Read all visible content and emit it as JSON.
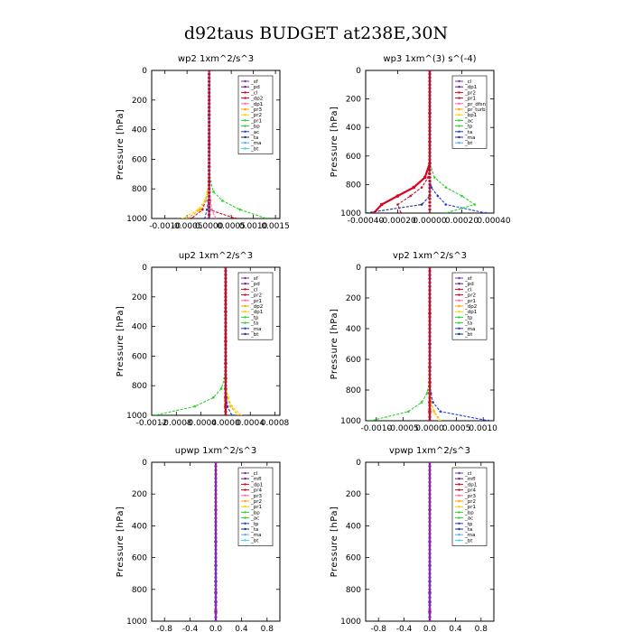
{
  "suptitle": "d92taus  BUDGET at238E,30N",
  "colors": {
    "purple": "#7b2fbf",
    "dpurple": "#5a1f99",
    "red": "#e0001f",
    "crimson": "#c0102a",
    "orange": "#ffa300",
    "yellow": "#ffd000",
    "green": "#2bd32b",
    "blue": "#1f3fe0",
    "navy": "#203080",
    "cyan": "#33d8ee",
    "ltblue": "#55aaff"
  },
  "chart_data": [
    {
      "type": "line",
      "title": "wp2   1xm^2/s^3",
      "ylabel": "Pressure  [hPa]",
      "xlim": [
        -0.0013,
        0.0016
      ],
      "ylim": [
        1000,
        0
      ],
      "xticks": [
        -0.001,
        -0.0005,
        0.0,
        0.0005,
        0.001,
        0.0015
      ],
      "xtick_labels": [
        "-0.0010",
        "-0.0005",
        "0.0000",
        "0.0005",
        "0.0010",
        "0.0015"
      ],
      "yticks": [
        0,
        200,
        400,
        600,
        800,
        1000
      ],
      "legend": [
        "_sf",
        "_pd",
        "_cl",
        "_dp2",
        "_dp1",
        "_pr3",
        "_pr2",
        "_pr1",
        "_bp",
        "_ac",
        "_ta",
        "_ma",
        "_bt"
      ],
      "series": [
        {
          "name": "_sf",
          "color": "#7b2fbf",
          "profile": [
            0,
            0,
            0,
            0,
            0,
            0,
            0,
            0,
            0
          ]
        },
        {
          "name": "_pd",
          "color": "#5a1f99",
          "profile": [
            0,
            0,
            0,
            0,
            0,
            0,
            0,
            0,
            0
          ]
        },
        {
          "name": "_dp2",
          "color": "#e0001f",
          "profile": [
            0,
            0,
            0,
            0,
            0,
            0,
            0,
            0,
            0.0006
          ]
        },
        {
          "name": "_dp1",
          "color": "#c0102a",
          "profile": [
            0,
            0,
            0,
            0,
            -1e-05,
            -3e-05,
            -8e-05,
            -0.00015,
            -0.0004
          ]
        },
        {
          "name": "_pr3",
          "color": "#ff66aa",
          "profile": [
            0,
            0,
            0,
            0,
            0,
            1e-05,
            3e-05,
            6e-05,
            0.00015
          ]
        },
        {
          "name": "_pr2",
          "color": "#ffa300",
          "profile": [
            0,
            0,
            0,
            0,
            -1e-05,
            -3e-05,
            -8e-05,
            -0.0002,
            -0.0005
          ]
        },
        {
          "name": "_pr1",
          "color": "#ffd000",
          "profile": [
            0,
            0,
            0,
            0,
            -1e-05,
            -4e-05,
            -0.0001,
            -0.00025,
            -0.0006
          ]
        },
        {
          "name": "_bp",
          "color": "#2bd32b",
          "profile": [
            0,
            0,
            0,
            0,
            3e-05,
            0.0001,
            0.0003,
            0.0007,
            0.0013
          ]
        },
        {
          "name": "_ta",
          "color": "#1f3fe0",
          "profile": [
            0,
            0,
            0,
            0,
            0,
            0,
            -2e-05,
            -5e-05,
            -0.0001
          ]
        },
        {
          "name": "_bt",
          "color": "#33d8ee",
          "profile": [
            0,
            0,
            0,
            0,
            0,
            0,
            0,
            0,
            2e-05
          ]
        }
      ]
    },
    {
      "type": "line",
      "title": "wp3   1xm^(3) s^(-4)",
      "ylabel": "Pressure  [hPa]",
      "xlim": [
        -0.0004,
        0.0004
      ],
      "ylim": [
        1000,
        0
      ],
      "xticks": [
        -0.0004,
        -0.0002,
        0.0,
        0.0002,
        0.0004
      ],
      "xtick_labels": [
        "-0.00040",
        "-0.00020",
        "0.00000",
        "0.00020",
        "0.00040"
      ],
      "yticks": [
        0,
        200,
        400,
        600,
        800,
        1000
      ],
      "legend": [
        "_cl",
        "_dp1",
        "_pr2",
        "_pr1",
        "_pr_dfsn",
        "_pr_turb",
        "_bp1",
        "_ac",
        "_tp",
        "_ta",
        "_ma",
        "_bt"
      ],
      "series": [
        {
          "name": "_dp1",
          "color": "#e0001f",
          "profile": [
            0,
            0,
            0,
            0,
            -3e-05,
            -0.0001,
            -0.0002,
            -0.0003,
            -0.00035
          ]
        },
        {
          "name": "_pr2",
          "color": "#c0102a",
          "profile": [
            0,
            0,
            0,
            0,
            -1e-05,
            -5e-05,
            -0.00012,
            -0.0002,
            -0.00018
          ]
        },
        {
          "name": "_bp1",
          "color": "#2bd32b",
          "profile": [
            0,
            0,
            0,
            0,
            3e-05,
            0.0001,
            0.0002,
            0.00028,
            0.0001
          ]
        },
        {
          "name": "_tp",
          "color": "#1f3fe0",
          "profile": [
            0,
            0,
            0,
            0,
            0,
            1e-05,
            5e-05,
            0.0001,
            0.00035
          ]
        },
        {
          "name": "_ta",
          "color": "#203080",
          "profile": [
            0,
            0,
            0,
            0,
            0,
            0,
            0,
            -5e-05,
            -0.0004
          ]
        }
      ]
    },
    {
      "type": "line",
      "title": "up2   1xm^2/s^3",
      "ylabel": "Pressure  [hPa]",
      "xlim": [
        -0.0012,
        0.00088
      ],
      "ylim": [
        1000,
        0
      ],
      "xticks": [
        -0.0012,
        -0.0008,
        -0.0004,
        0.0,
        0.0004,
        0.0008
      ],
      "xtick_labels": [
        "-0.0012",
        "-0.0008",
        "-0.0004",
        "0.0000",
        "0.0004",
        "0.0008"
      ],
      "yticks": [
        0,
        200,
        400,
        600,
        800,
        1000
      ],
      "legend": [
        "_sf",
        "_pd",
        "_cl",
        "_pr2",
        "_pr1",
        "_dp2",
        "_dp1",
        "_tp",
        "_ta",
        "_ma",
        "_bt"
      ],
      "series": [
        {
          "name": "_sf",
          "color": "#e0001f",
          "profile": [
            0,
            0,
            0,
            0,
            0,
            0,
            0,
            0,
            0
          ]
        },
        {
          "name": "_pr2",
          "color": "#ffa300",
          "profile": [
            0,
            0,
            0,
            0,
            0,
            1e-05,
            3e-05,
            8e-05,
            0.0002
          ]
        },
        {
          "name": "_pr1",
          "color": "#ffd000",
          "profile": [
            0,
            0,
            0,
            0,
            0,
            1e-05,
            4e-05,
            0.0001,
            0.00025
          ]
        },
        {
          "name": "_dp1",
          "color": "#2bd32b",
          "profile": [
            0,
            0,
            0,
            0,
            -2e-05,
            -7e-05,
            -0.0002,
            -0.0005,
            -0.00115
          ]
        },
        {
          "name": "_tp",
          "color": "#1f3fe0",
          "profile": [
            0,
            0,
            0,
            0,
            0,
            0,
            1e-05,
            3e-05,
            0.0001
          ]
        }
      ]
    },
    {
      "type": "line",
      "title": "vp2   1xm^2/s^3",
      "ylabel": "Pressure  [hPa]",
      "xlim": [
        -0.0012,
        0.0012
      ],
      "ylim": [
        1000,
        0
      ],
      "xticks": [
        -0.001,
        -0.0005,
        0.0,
        0.0005,
        0.001
      ],
      "xtick_labels": [
        "-0.0010",
        "-0.0005",
        "0.0000",
        "0.0005",
        "0.0010"
      ],
      "yticks": [
        0,
        200,
        400,
        600,
        800,
        1000
      ],
      "legend": [
        "_sf",
        "_pd",
        "_cl",
        "_pr2",
        "_pr1",
        "_dp2",
        "_dp1",
        "_tp",
        "_ta",
        "_ma",
        "_bt"
      ],
      "series": [
        {
          "name": "_sf",
          "color": "#e0001f",
          "profile": [
            0,
            0,
            0,
            0,
            0,
            0,
            0,
            0,
            0
          ]
        },
        {
          "name": "_pr2",
          "color": "#ffa300",
          "profile": [
            0,
            0,
            0,
            0,
            0,
            1e-05,
            3e-05,
            8e-05,
            0.0002
          ]
        },
        {
          "name": "_pr1",
          "color": "#ffd000",
          "profile": [
            0,
            0,
            0,
            0,
            0,
            1e-05,
            3e-05,
            7e-05,
            0.00018
          ]
        },
        {
          "name": "_dp1",
          "color": "#2bd32b",
          "profile": [
            0,
            0,
            0,
            0,
            -1e-05,
            -5e-05,
            -0.00015,
            -0.0004,
            -0.0011
          ]
        },
        {
          "name": "_tp",
          "color": "#1f3fe0",
          "profile": [
            0,
            0,
            0,
            0,
            0,
            2e-05,
            6e-05,
            0.0002,
            0.0011
          ]
        }
      ]
    },
    {
      "type": "line",
      "title": "upwp   1xm^2/s^3",
      "ylabel": "Pressure  [hPa]",
      "xlim": [
        -1.0,
        1.0
      ],
      "ylim": [
        1000,
        0
      ],
      "xticks": [
        -0.8,
        -0.4,
        0.0,
        0.4,
        0.8
      ],
      "xtick_labels": [
        "-0.8",
        "-0.4",
        "0.0",
        "0.4",
        "0.8"
      ],
      "yticks": [
        0,
        200,
        400,
        600,
        800,
        1000
      ],
      "legend": [
        "_cl",
        "_mfl",
        "_dp1",
        "_pr4",
        "_pr3",
        "_pr2",
        "_pr1",
        "_bp",
        "_ac",
        "_tp",
        "_ta",
        "_ma",
        "_bt"
      ],
      "series": [
        {
          "name": "_cl",
          "color": "#7b2fbf",
          "profile": [
            0,
            0,
            0,
            0,
            0,
            0,
            0,
            0,
            0
          ]
        },
        {
          "name": "_dp1",
          "color": "#e0001f",
          "profile": [
            0,
            0,
            0,
            0,
            0,
            0,
            0,
            0,
            0
          ]
        }
      ]
    },
    {
      "type": "line",
      "title": "vpwp   1xm^2/s^3",
      "ylabel": "Pressure  [hPa]",
      "xlim": [
        -1.0,
        1.0
      ],
      "ylim": [
        1000,
        0
      ],
      "xticks": [
        -0.8,
        -0.4,
        0.0,
        0.4,
        0.8
      ],
      "xtick_labels": [
        "-0.8",
        "-0.4",
        "0.0",
        "0.4",
        "0.8"
      ],
      "yticks": [
        0,
        200,
        400,
        600,
        800,
        1000
      ],
      "legend": [
        "_cl",
        "_mfl",
        "_dp1",
        "_pr4",
        "_pr3",
        "_pr2",
        "_pr1",
        "_bp",
        "_ac",
        "_tp",
        "_ta",
        "_ma",
        "_bt"
      ],
      "series": [
        {
          "name": "_cl",
          "color": "#7b2fbf",
          "profile": [
            0,
            0,
            0,
            0,
            0,
            0,
            0,
            0,
            0
          ]
        },
        {
          "name": "_dp1",
          "color": "#e0001f",
          "profile": [
            0,
            0,
            0,
            0,
            0,
            0,
            0,
            0,
            0
          ]
        }
      ]
    }
  ]
}
